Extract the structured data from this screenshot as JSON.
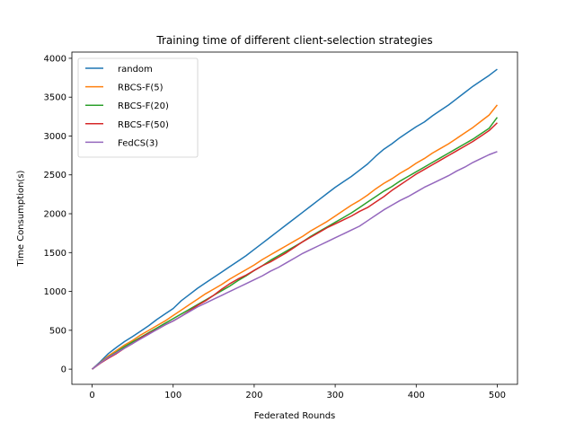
{
  "chart_data": {
    "type": "line",
    "title": "Training time of different client-selection strategies",
    "xlabel": "Federated Rounds",
    "ylabel": "Time Consumption(s)",
    "xlim": [
      -25,
      525
    ],
    "ylim": [
      -195,
      4080
    ],
    "xticks": [
      0,
      100,
      200,
      300,
      400,
      500
    ],
    "yticks": [
      0,
      500,
      1000,
      1500,
      2000,
      2500,
      3000,
      3500,
      4000
    ],
    "grid": false,
    "legend_position": "top-left",
    "series": [
      {
        "name": "random",
        "color": "#1f77b4",
        "x": [
          0,
          10,
          20,
          30,
          40,
          50,
          60,
          70,
          80,
          90,
          100,
          110,
          120,
          130,
          140,
          150,
          160,
          170,
          180,
          190,
          200,
          210,
          220,
          230,
          240,
          250,
          260,
          270,
          280,
          290,
          300,
          310,
          320,
          330,
          340,
          350,
          360,
          370,
          380,
          390,
          400,
          410,
          420,
          430,
          440,
          450,
          460,
          470,
          480,
          490,
          500
        ],
        "y": [
          0,
          95,
          200,
          280,
          355,
          420,
          490,
          560,
          640,
          710,
          780,
          880,
          960,
          1040,
          1110,
          1180,
          1250,
          1320,
          1390,
          1460,
          1540,
          1620,
          1700,
          1780,
          1860,
          1940,
          2020,
          2100,
          2180,
          2260,
          2340,
          2410,
          2480,
          2560,
          2640,
          2740,
          2830,
          2900,
          2980,
          3050,
          3120,
          3180,
          3260,
          3330,
          3400,
          3480,
          3560,
          3640,
          3710,
          3780,
          3860
        ]
      },
      {
        "name": "RBCS-F(5)",
        "color": "#ff7f0e",
        "x": [
          0,
          10,
          20,
          30,
          40,
          50,
          60,
          70,
          80,
          90,
          100,
          110,
          120,
          130,
          140,
          150,
          160,
          170,
          180,
          190,
          200,
          210,
          220,
          230,
          240,
          250,
          260,
          270,
          280,
          290,
          300,
          310,
          320,
          330,
          340,
          350,
          360,
          370,
          380,
          390,
          400,
          410,
          420,
          430,
          440,
          450,
          460,
          470,
          480,
          490,
          500
        ],
        "y": [
          0,
          85,
          170,
          240,
          310,
          370,
          440,
          500,
          560,
          620,
          690,
          760,
          830,
          900,
          970,
          1030,
          1090,
          1160,
          1220,
          1280,
          1340,
          1410,
          1470,
          1530,
          1590,
          1650,
          1710,
          1780,
          1840,
          1900,
          1970,
          2040,
          2110,
          2170,
          2240,
          2320,
          2390,
          2450,
          2520,
          2580,
          2650,
          2710,
          2780,
          2840,
          2900,
          2970,
          3040,
          3110,
          3190,
          3270,
          3400
        ]
      },
      {
        "name": "RBCS-F(20)",
        "color": "#2ca02c",
        "x": [
          0,
          10,
          20,
          30,
          40,
          50,
          60,
          70,
          80,
          90,
          100,
          110,
          120,
          130,
          140,
          150,
          160,
          170,
          180,
          190,
          200,
          210,
          220,
          230,
          240,
          250,
          260,
          270,
          280,
          290,
          300,
          310,
          320,
          330,
          340,
          350,
          360,
          370,
          380,
          390,
          400,
          410,
          420,
          430,
          440,
          450,
          460,
          470,
          480,
          490,
          500
        ],
        "y": [
          0,
          80,
          155,
          220,
          290,
          350,
          410,
          470,
          530,
          590,
          650,
          710,
          770,
          830,
          890,
          950,
          1010,
          1070,
          1140,
          1200,
          1270,
          1330,
          1400,
          1460,
          1520,
          1580,
          1640,
          1710,
          1770,
          1830,
          1890,
          1950,
          2010,
          2080,
          2150,
          2220,
          2290,
          2350,
          2420,
          2480,
          2540,
          2600,
          2660,
          2720,
          2780,
          2840,
          2900,
          2960,
          3030,
          3100,
          3240
        ]
      },
      {
        "name": "RBCS-F(50)",
        "color": "#d62728",
        "x": [
          0,
          10,
          20,
          30,
          40,
          50,
          60,
          70,
          80,
          90,
          100,
          110,
          120,
          130,
          140,
          150,
          160,
          170,
          180,
          190,
          200,
          210,
          220,
          230,
          240,
          250,
          260,
          270,
          280,
          290,
          300,
          310,
          320,
          330,
          340,
          350,
          360,
          370,
          380,
          390,
          400,
          410,
          420,
          430,
          440,
          450,
          460,
          470,
          480,
          490,
          500
        ],
        "y": [
          0,
          75,
          140,
          200,
          270,
          330,
          400,
          460,
          510,
          570,
          620,
          680,
          750,
          820,
          880,
          950,
          1030,
          1100,
          1160,
          1210,
          1270,
          1330,
          1380,
          1440,
          1500,
          1570,
          1640,
          1700,
          1760,
          1820,
          1870,
          1920,
          1970,
          2030,
          2080,
          2150,
          2220,
          2300,
          2370,
          2440,
          2510,
          2570,
          2630,
          2690,
          2750,
          2810,
          2870,
          2930,
          3000,
          3070,
          3170
        ]
      },
      {
        "name": "FedCS(3)",
        "color": "#9467bd",
        "x": [
          0,
          10,
          20,
          30,
          40,
          50,
          60,
          70,
          80,
          90,
          100,
          110,
          120,
          130,
          140,
          150,
          160,
          170,
          180,
          190,
          200,
          210,
          220,
          230,
          240,
          250,
          260,
          270,
          280,
          290,
          300,
          310,
          320,
          330,
          340,
          350,
          360,
          370,
          380,
          390,
          400,
          410,
          420,
          430,
          440,
          450,
          460,
          470,
          480,
          490,
          500
        ],
        "y": [
          0,
          80,
          150,
          210,
          270,
          330,
          390,
          450,
          510,
          570,
          620,
          680,
          740,
          800,
          850,
          900,
          950,
          1000,
          1050,
          1100,
          1150,
          1200,
          1260,
          1310,
          1370,
          1430,
          1490,
          1540,
          1590,
          1640,
          1690,
          1740,
          1790,
          1840,
          1910,
          1980,
          2050,
          2110,
          2170,
          2220,
          2280,
          2340,
          2390,
          2440,
          2490,
          2550,
          2600,
          2660,
          2710,
          2760,
          2800
        ]
      }
    ]
  }
}
